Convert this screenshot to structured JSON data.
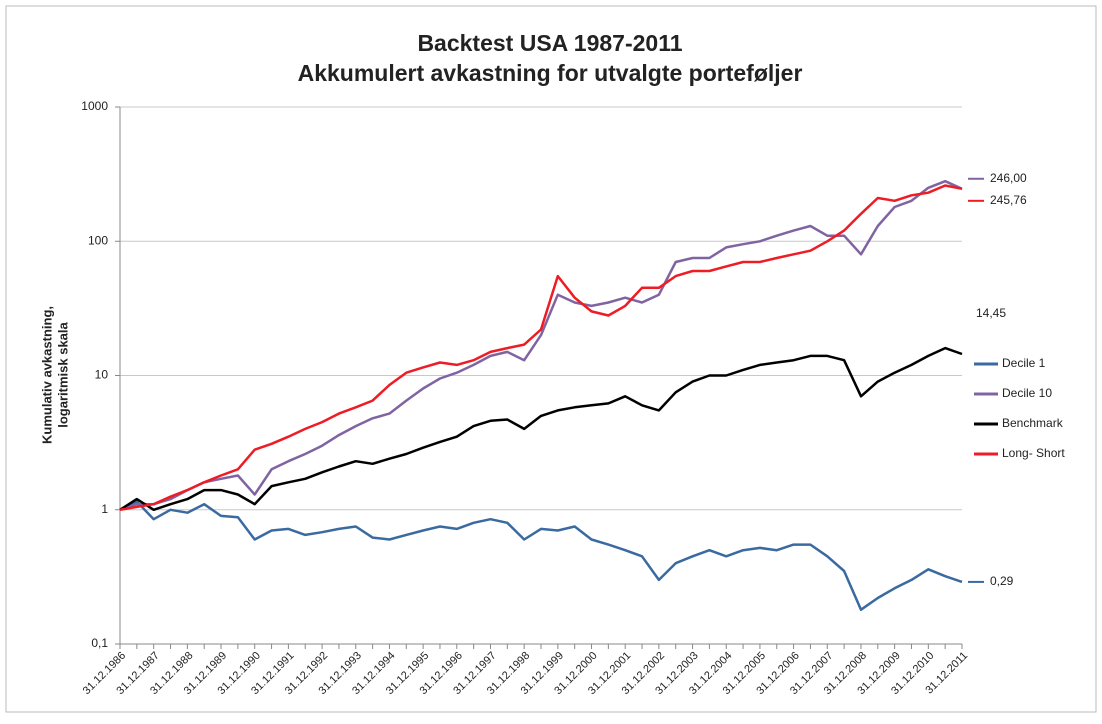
{
  "chart_data": {
    "type": "line",
    "title": "Backtest USA 1987-2011",
    "subtitle": "Akkumulert avkastning for utvalgte porteføljer",
    "ylabel": [
      "Kumulativ avkastning,",
      "logaritmisk skala"
    ],
    "log_y": true,
    "grid": true,
    "legend": "right",
    "ylim": [
      0.1,
      1000
    ],
    "yticks": [
      {
        "value": 0.1,
        "label": "0,1"
      },
      1,
      10,
      100,
      1000
    ],
    "categories": [
      "31.12.1986",
      null,
      "31.12.1987",
      null,
      "31.12.1988",
      null,
      "31.12.1989",
      null,
      "31.12.1990",
      null,
      "31.12.1991",
      null,
      "31.12.1992",
      null,
      "31.12.1993",
      null,
      "31.12.1994",
      null,
      "31.12.1995",
      null,
      "31.12.1996",
      null,
      "31.12.1997",
      null,
      "31.12.1998",
      null,
      "31.12.1999",
      null,
      "31.12.2000",
      null,
      "31.12.2001",
      null,
      "31.12.2002",
      null,
      "31.12.2003",
      null,
      "31.12.2004",
      null,
      "31.12.2005",
      null,
      "31.12.2006",
      null,
      "31.12.2007",
      null,
      "31.12.2008",
      null,
      "31.12.2009",
      null,
      "31.12.2010",
      null,
      "31.12.2011"
    ],
    "series": [
      {
        "name": "Decile 1",
        "color": "#3a6aa0",
        "values": [
          1,
          1.15,
          0.85,
          1.0,
          0.95,
          1.1,
          0.9,
          0.88,
          0.6,
          0.7,
          0.72,
          0.65,
          0.68,
          0.72,
          0.75,
          0.62,
          0.6,
          0.65,
          0.7,
          0.75,
          0.72,
          0.8,
          0.85,
          0.8,
          0.6,
          0.72,
          0.7,
          0.75,
          0.6,
          0.55,
          0.5,
          0.45,
          0.3,
          0.4,
          0.45,
          0.5,
          0.45,
          0.5,
          0.52,
          0.5,
          0.55,
          0.55,
          0.45,
          0.35,
          0.18,
          0.22,
          0.26,
          0.3,
          0.36,
          0.32,
          0.29
        ],
        "value_labels": [
          null,
          null,
          null,
          null,
          null,
          null,
          null,
          null,
          null,
          null,
          null,
          null,
          null,
          null,
          null,
          null,
          null,
          null,
          null,
          null,
          null,
          null,
          null,
          null,
          null,
          null,
          null,
          null,
          null,
          null,
          null,
          null,
          null,
          null,
          null,
          null,
          null,
          null,
          null,
          null,
          null,
          null,
          null,
          null,
          null,
          null,
          null,
          null,
          null,
          null,
          "0,29"
        ]
      },
      {
        "name": "Decile 10",
        "color": "#8064a2",
        "values": [
          1,
          1.1,
          1.1,
          1.2,
          1.4,
          1.6,
          1.7,
          1.8,
          1.3,
          2.0,
          2.3,
          2.6,
          3.0,
          3.6,
          4.2,
          4.8,
          5.2,
          6.5,
          8.0,
          9.5,
          10.5,
          12,
          14,
          15,
          13,
          20,
          40,
          35,
          33,
          35,
          38,
          35,
          40,
          70,
          75,
          75,
          90,
          95,
          100,
          110,
          120,
          130,
          110,
          110,
          80,
          130,
          180,
          200,
          250,
          280,
          246
        ],
        "value_labels": [
          null,
          null,
          null,
          null,
          null,
          null,
          null,
          null,
          null,
          null,
          null,
          null,
          null,
          null,
          null,
          null,
          null,
          null,
          null,
          null,
          null,
          null,
          null,
          null,
          null,
          null,
          null,
          null,
          null,
          null,
          null,
          null,
          null,
          null,
          null,
          null,
          null,
          null,
          null,
          null,
          null,
          null,
          null,
          null,
          null,
          null,
          null,
          null,
          null,
          null,
          "246,00"
        ]
      },
      {
        "name": "Benchmark",
        "color": "#000000",
        "values": [
          1,
          1.2,
          1.0,
          1.1,
          1.2,
          1.4,
          1.4,
          1.3,
          1.1,
          1.5,
          1.6,
          1.7,
          1.9,
          2.1,
          2.3,
          2.2,
          2.4,
          2.6,
          2.9,
          3.2,
          3.5,
          4.2,
          4.6,
          4.7,
          4.0,
          5.0,
          5.5,
          5.8,
          6.0,
          6.2,
          7.0,
          6.0,
          5.5,
          7.5,
          9.0,
          10.0,
          10.0,
          11,
          12,
          12.5,
          13,
          14,
          14,
          13,
          7,
          9,
          10.5,
          12,
          14,
          16,
          14.45
        ],
        "value_labels": [
          null,
          null,
          null,
          null,
          null,
          null,
          null,
          null,
          null,
          null,
          null,
          null,
          null,
          null,
          null,
          null,
          null,
          null,
          null,
          null,
          null,
          null,
          null,
          null,
          null,
          null,
          null,
          null,
          null,
          null,
          null,
          null,
          null,
          null,
          null,
          null,
          null,
          null,
          null,
          null,
          null,
          null,
          null,
          null,
          null,
          null,
          null,
          null,
          null,
          null,
          "14,45"
        ]
      },
      {
        "name": "Long- Short",
        "color": "#ee1c25",
        "values": [
          1,
          1.05,
          1.1,
          1.25,
          1.4,
          1.6,
          1.8,
          2.0,
          2.8,
          3.1,
          3.5,
          4.0,
          4.5,
          5.2,
          5.8,
          6.5,
          8.5,
          10.5,
          11.5,
          12.5,
          12,
          13,
          15,
          16,
          17,
          22,
          55,
          38,
          30,
          28,
          33,
          45,
          45,
          55,
          60,
          60,
          65,
          70,
          70,
          75,
          80,
          85,
          100,
          120,
          160,
          210,
          200,
          220,
          230,
          260,
          245.76
        ],
        "value_labels": [
          null,
          null,
          null,
          null,
          null,
          null,
          null,
          null,
          null,
          null,
          null,
          null,
          null,
          null,
          null,
          null,
          null,
          null,
          null,
          null,
          null,
          null,
          null,
          null,
          null,
          null,
          null,
          null,
          null,
          null,
          null,
          null,
          null,
          null,
          null,
          null,
          null,
          null,
          null,
          null,
          null,
          null,
          null,
          null,
          null,
          null,
          null,
          null,
          null,
          null,
          "245,76"
        ]
      }
    ]
  }
}
